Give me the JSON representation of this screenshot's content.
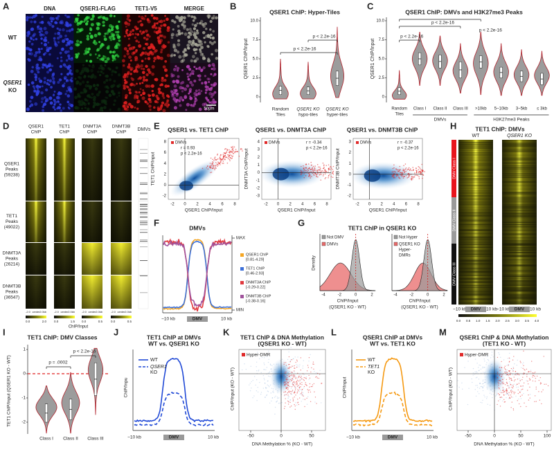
{
  "A": {
    "letter": "A",
    "columns": [
      "DNA",
      "QSER1-FLAG",
      "TET1-V5",
      "MERGE"
    ],
    "rows": [
      [
        "WT"
      ],
      [
        "QSER1",
        "KO"
      ]
    ],
    "scale": "50μm"
  },
  "B": {
    "letter": "B",
    "title": "QSER1 ChIP: Hyper-Tiles",
    "ylabel": "QSER1 ChIP/Input",
    "yticks": [
      "0",
      "2.5",
      "5.0",
      "7.5",
      "10.0"
    ],
    "categories": [
      [
        "Random",
        "Tiles"
      ],
      [
        "QSER1 KO",
        "hypo-tiles"
      ],
      [
        "QSER1 KO",
        "hyper-tiles"
      ]
    ],
    "pvalues": [
      "p < 2.2e-16",
      "p < 2.2e-16"
    ]
  },
  "C": {
    "letter": "C",
    "title": "QSER1 ChIP: DMVs and H3K27me3 Peaks",
    "ylabel": "QSER1 ChIP/Input",
    "yticks": [
      "0",
      "2.5",
      "5.0",
      "7.5",
      "10.0"
    ],
    "categories": [
      [
        "Random",
        "Tiles"
      ],
      [
        "Class I"
      ],
      [
        "Class II"
      ],
      [
        "Class III"
      ],
      [
        ">10kb"
      ],
      [
        "5~10kb"
      ],
      [
        "3~5kb"
      ],
      [
        "≤ 3kb"
      ]
    ],
    "groups": [
      "DMVs",
      "H3K27me3 Peaks"
    ],
    "pvalues": [
      "p < 2.2e-16",
      "p < 2.2e-16",
      "p < 2.2e-16"
    ]
  },
  "D": {
    "letter": "D",
    "columns": [
      [
        "QSER1",
        "ChIP"
      ],
      [
        "TET1",
        "ChIP"
      ],
      [
        "DNMT3A",
        "ChIP"
      ],
      [
        "DNMT3B",
        "ChIP"
      ]
    ],
    "dmvs": "DMVs",
    "rows": [
      [
        "QSER1",
        "Peaks",
        "(59238)"
      ],
      [
        "TET1",
        "Peaks",
        "(49022)"
      ],
      [
        "DNMT3A",
        "Peaks",
        "(26214)"
      ],
      [
        "DNMT3B",
        "Peaks",
        "(36547)"
      ]
    ],
    "xaxis": [
      "-2.0",
      "center",
      "2.0kb"
    ],
    "colorbars": [
      [
        "0.0",
        "2.0"
      ],
      [
        "0.0",
        "1.5"
      ],
      [
        "0.0",
        "0.5"
      ],
      [
        "0.0",
        "0.5"
      ]
    ],
    "caption": "ChIP/Input"
  },
  "E": {
    "letter": "E",
    "legend": "DMVs",
    "xlabel": "QSER1 ChIP/Input",
    "xticks": [
      "-2",
      "0",
      "2",
      "4",
      "6",
      "8"
    ],
    "plots": [
      {
        "title": "QSER1 vs. TET1 ChIP",
        "ylabel": "TET1 ChIP/Input",
        "yticks": [
          "-2",
          "0",
          "2",
          "4",
          "6",
          "8"
        ],
        "stats": [
          "r = 0.93",
          "p < 2.2e-16"
        ]
      },
      {
        "title": "QSER1 vs. DNMT3A ChIP",
        "ylabel": "DNMT3A ChIP/Input",
        "yticks": [
          "-3",
          "-2",
          "-1",
          "0",
          "1",
          "2",
          "3",
          "4"
        ],
        "stats": [
          "r = -0.34",
          "p < 2.2e-16"
        ]
      },
      {
        "title": "QSER1 vs. DNMT3B ChIP",
        "ylabel": "DNMT3B ChIP/Input",
        "yticks": [
          "-2",
          "-1",
          "0",
          "1",
          "2",
          "3"
        ],
        "stats": [
          "r = -0.37",
          "p < 2.2e-16"
        ]
      }
    ]
  },
  "F": {
    "letter": "F",
    "title": "DMVs",
    "max": "MAX",
    "min": "MIN",
    "legend": [
      {
        "name": "QSER1 ChIP",
        "range": "[0.81-4.29]",
        "color": "#f5a623"
      },
      {
        "name": "TET1 ChIP",
        "range": "[0.46-2.93]",
        "color": "#3b6fd8"
      },
      {
        "name": "DNMT3A ChIP",
        "range": "[-0.29-0.22]",
        "color": "#e0393e"
      },
      {
        "name": "DNMT3B ChIP",
        "range": "[-0.38-0.16]",
        "color": "#a0529c"
      }
    ],
    "xaxis": [
      "−10 kb",
      "DMV",
      "10 kb"
    ]
  },
  "G": {
    "letter": "G",
    "title": "TET1 ChIP in QSER1 KO",
    "ylabel": "Density",
    "xticks": [
      "-4",
      "-2",
      "0",
      "2"
    ],
    "xlabel": [
      "ChIP/Input",
      "(QSER1 KO - WT)"
    ],
    "legends": [
      [
        [
          "Not DMV"
        ],
        [
          "DMVs"
        ]
      ],
      [
        [
          "Not Hyper"
        ],
        [
          "QSER1 KO",
          "Hyper-",
          "DMRs"
        ]
      ]
    ]
  },
  "H": {
    "letter": "H",
    "title": "TET1 ChIP: DMVs",
    "columns": [
      "WT",
      "QSER1 KO"
    ],
    "classes": [
      "DMV Class I",
      "DMV Class II",
      "DMV Class III"
    ],
    "xaxis": [
      "−10 kb",
      "DMV",
      "10 kb"
    ],
    "colorbar": [
      "0.0",
      "0.5",
      "1.0",
      "1.5",
      "2.0",
      "2.5",
      "3.0",
      "3.5",
      "4.0"
    ]
  },
  "I": {
    "letter": "I",
    "title": "TET1 ChIP: DMV Classes",
    "ylabel": "TET1 ChIP/Input (QSER1 KO - WT)",
    "yticks": [
      "-2",
      "-1",
      "0",
      "1"
    ],
    "categories": [
      "Class I",
      "Class II",
      "Class III"
    ],
    "pvalues": [
      "p = .0002",
      "p < 2.2e-16"
    ]
  },
  "J": {
    "letter": "J",
    "title": "TET1 ChIP at DMVs",
    "subtitle": "WT vs. QSER1 KO",
    "ylabel": "ChIP/Inpu",
    "legend": [
      [
        "WT"
      ],
      [
        "QSER1",
        "KO"
      ]
    ],
    "xaxis": [
      "−10 kb",
      "DMV",
      "10 kb"
    ]
  },
  "K": {
    "letter": "K",
    "title": "TET1 ChIP & DNA Methylation",
    "subtitle": "(QSER1 KO - WT)",
    "legend": "Hyper-DMR",
    "ylabel": "ChIP/Input (KO - WT)",
    "xlabel": "DNA Methylation % (KO - WT)",
    "xticks": [
      "-50",
      "0",
      "50"
    ]
  },
  "L": {
    "letter": "L",
    "title": "QSER1 ChIP at DMVs",
    "subtitle": "WT vs. TET1 KO",
    "ylabel": "ChIP/Input",
    "legend": [
      [
        "WT"
      ],
      [
        "TET1",
        "KO"
      ]
    ],
    "xaxis": [
      "−10 kb",
      "DMV",
      "10 kb"
    ]
  },
  "M": {
    "letter": "M",
    "title": "QSER1 ChIP & DNA Methylation",
    "subtitle": "(TET1 KO - WT)",
    "legend": "Hyper-DMR",
    "ylabel": "ChIP/Input (KO - WT)",
    "xlabel": "DNA Methylation % (KO - WT)",
    "xticks": [
      "-50",
      "0",
      "50",
      "100"
    ]
  }
}
